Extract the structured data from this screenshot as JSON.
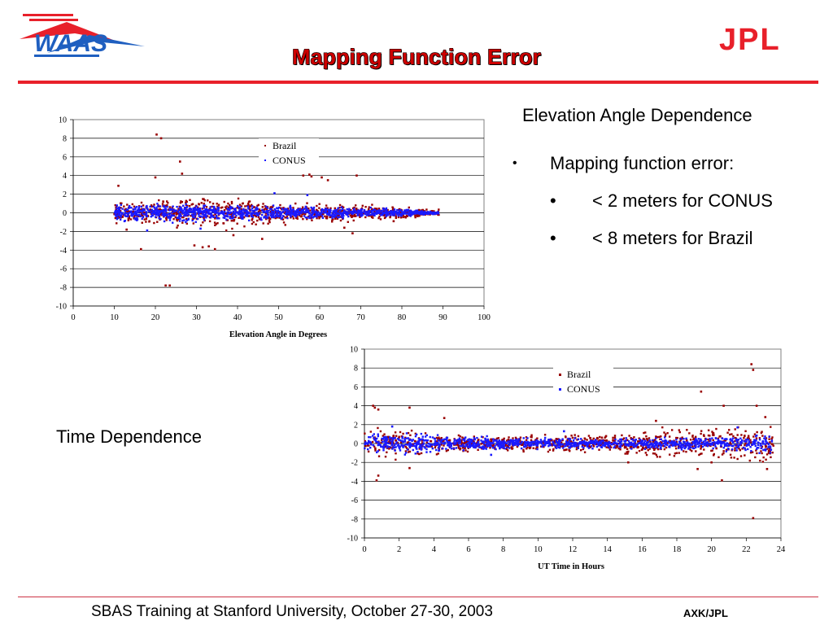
{
  "slide": {
    "title": "Mapping Function Error",
    "elevation_heading": "Elevation Angle Dependence",
    "bullet": "Mapping function error:",
    "bullet_marker": "•",
    "sub_bullets": [
      "< 2 meters for CONUS",
      "< 8 meters for Brazil"
    ],
    "time_heading": "Time Dependence",
    "footer_text": "SBAS Training at Stanford University, October 27-30, 2003",
    "footer_right": "AXK/JPL",
    "logo_left_text": "WAAS",
    "logo_right_text": "JPL"
  },
  "colors": {
    "brazil": "#990000",
    "conus": "#1a1aff",
    "accent": "#e8202a",
    "logo_blue": "#1f5fc0"
  },
  "chart_data": [
    {
      "type": "scatter",
      "title": "",
      "xlabel": "Elevation Angle in Degrees",
      "ylabel": "",
      "xlim": [
        0,
        100
      ],
      "ylim": [
        -10,
        10
      ],
      "xticks": [
        0,
        10,
        20,
        30,
        40,
        50,
        60,
        70,
        80,
        90,
        100
      ],
      "yticks": [
        -10,
        -8,
        -6,
        -4,
        -2,
        0,
        2,
        4,
        6,
        8,
        10
      ],
      "legend": [
        "Brazil",
        "CONUS"
      ],
      "legend_placement": "top-center",
      "series": [
        {
          "name": "Brazil",
          "bulk": {
            "x_range": [
              10,
              89
            ],
            "spread": [
              [
                10,
                1.2
              ],
              [
                20,
                1.4
              ],
              [
                35,
                1.6
              ],
              [
                50,
                1.1
              ],
              [
                65,
                0.9
              ],
              [
                80,
                0.6
              ],
              [
                89,
                0.3
              ]
            ],
            "count": 900
          },
          "outliers": [
            [
              20.3,
              8.4
            ],
            [
              21.4,
              8
            ],
            [
              26,
              5.5
            ],
            [
              26.5,
              4.2
            ],
            [
              11,
              2.9
            ],
            [
              20,
              3.8
            ],
            [
              56,
              4
            ],
            [
              57.5,
              4.1
            ],
            [
              58,
              3.9
            ],
            [
              60.5,
              3.8
            ],
            [
              62,
              3.5
            ],
            [
              69,
              4
            ],
            [
              22.5,
              -7.8
            ],
            [
              23.5,
              -7.8
            ],
            [
              16.5,
              -3.9
            ],
            [
              29.5,
              -3.5
            ],
            [
              31.5,
              -3.7
            ],
            [
              33,
              -3.6
            ],
            [
              34.5,
              -3.9
            ],
            [
              46,
              -2.8
            ],
            [
              39,
              -2.4
            ],
            [
              66,
              -1.6
            ],
            [
              68,
              -2.2
            ],
            [
              78,
              -0.9
            ],
            [
              13,
              -1.8
            ]
          ]
        },
        {
          "name": "CONUS",
          "bulk": {
            "x_range": [
              10,
              89
            ],
            "spread": [
              [
                10,
                0.8
              ],
              [
                25,
                0.9
              ],
              [
                40,
                0.8
              ],
              [
                55,
                0.6
              ],
              [
                70,
                0.5
              ],
              [
                80,
                0.35
              ],
              [
                89,
                0.15
              ]
            ],
            "count": 1100
          },
          "outliers": [
            [
              18,
              -1.9
            ],
            [
              49,
              2.1
            ],
            [
              57,
              1.9
            ],
            [
              31,
              -1.7
            ]
          ]
        }
      ]
    },
    {
      "type": "scatter",
      "title": "",
      "xlabel": "UT Time in Hours",
      "ylabel": "",
      "xlim": [
        0,
        24
      ],
      "ylim": [
        -10,
        10
      ],
      "xticks": [
        0,
        2,
        4,
        6,
        8,
        10,
        12,
        14,
        16,
        18,
        20,
        22,
        24
      ],
      "yticks": [
        -10,
        -8,
        -6,
        -4,
        -2,
        0,
        2,
        4,
        6,
        8,
        10
      ],
      "legend": [
        "Brazil",
        "CONUS"
      ],
      "legend_placement": "top-center",
      "series": [
        {
          "name": "Brazil",
          "bulk": {
            "x_range": [
              0,
              23.6
            ],
            "spread": [
              [
                0,
                1.6
              ],
              [
                3,
                1.4
              ],
              [
                5,
                1.0
              ],
              [
                9,
                0.8
              ],
              [
                14,
                0.9
              ],
              [
                16.5,
                1.4
              ],
              [
                19,
                1.8
              ],
              [
                22,
                1.6
              ],
              [
                23.6,
                2.0
              ]
            ],
            "count": 900
          },
          "outliers": [
            [
              0.5,
              4
            ],
            [
              0.6,
              3.8
            ],
            [
              0.8,
              3.6
            ],
            [
              2.6,
              3.8
            ],
            [
              4.6,
              2.7
            ],
            [
              0.7,
              -3.9
            ],
            [
              0.8,
              -3.4
            ],
            [
              2.6,
              -2.6
            ],
            [
              19.4,
              5.5
            ],
            [
              20.7,
              4
            ],
            [
              22.3,
              8.4
            ],
            [
              22.4,
              7.8
            ],
            [
              22.6,
              4
            ],
            [
              23.1,
              2.8
            ],
            [
              22.4,
              -7.9
            ],
            [
              20.6,
              -3.9
            ],
            [
              19.2,
              -2.7
            ],
            [
              23.2,
              -2.7
            ],
            [
              16.8,
              2.4
            ],
            [
              20,
              -2
            ],
            [
              15.2,
              -2
            ]
          ]
        },
        {
          "name": "CONUS",
          "bulk": {
            "x_range": [
              0,
              23.6
            ],
            "spread": [
              [
                0,
                1.0
              ],
              [
                3,
                0.9
              ],
              [
                8,
                0.6
              ],
              [
                14,
                0.5
              ],
              [
                18,
                0.5
              ],
              [
                22,
                0.8
              ],
              [
                23.6,
                1.1
              ]
            ],
            "count": 1100
          },
          "outliers": [
            [
              1.6,
              1.8
            ],
            [
              7.3,
              -1.2
            ],
            [
              21.5,
              1.7
            ],
            [
              11.5,
              1.3
            ]
          ]
        }
      ]
    }
  ]
}
